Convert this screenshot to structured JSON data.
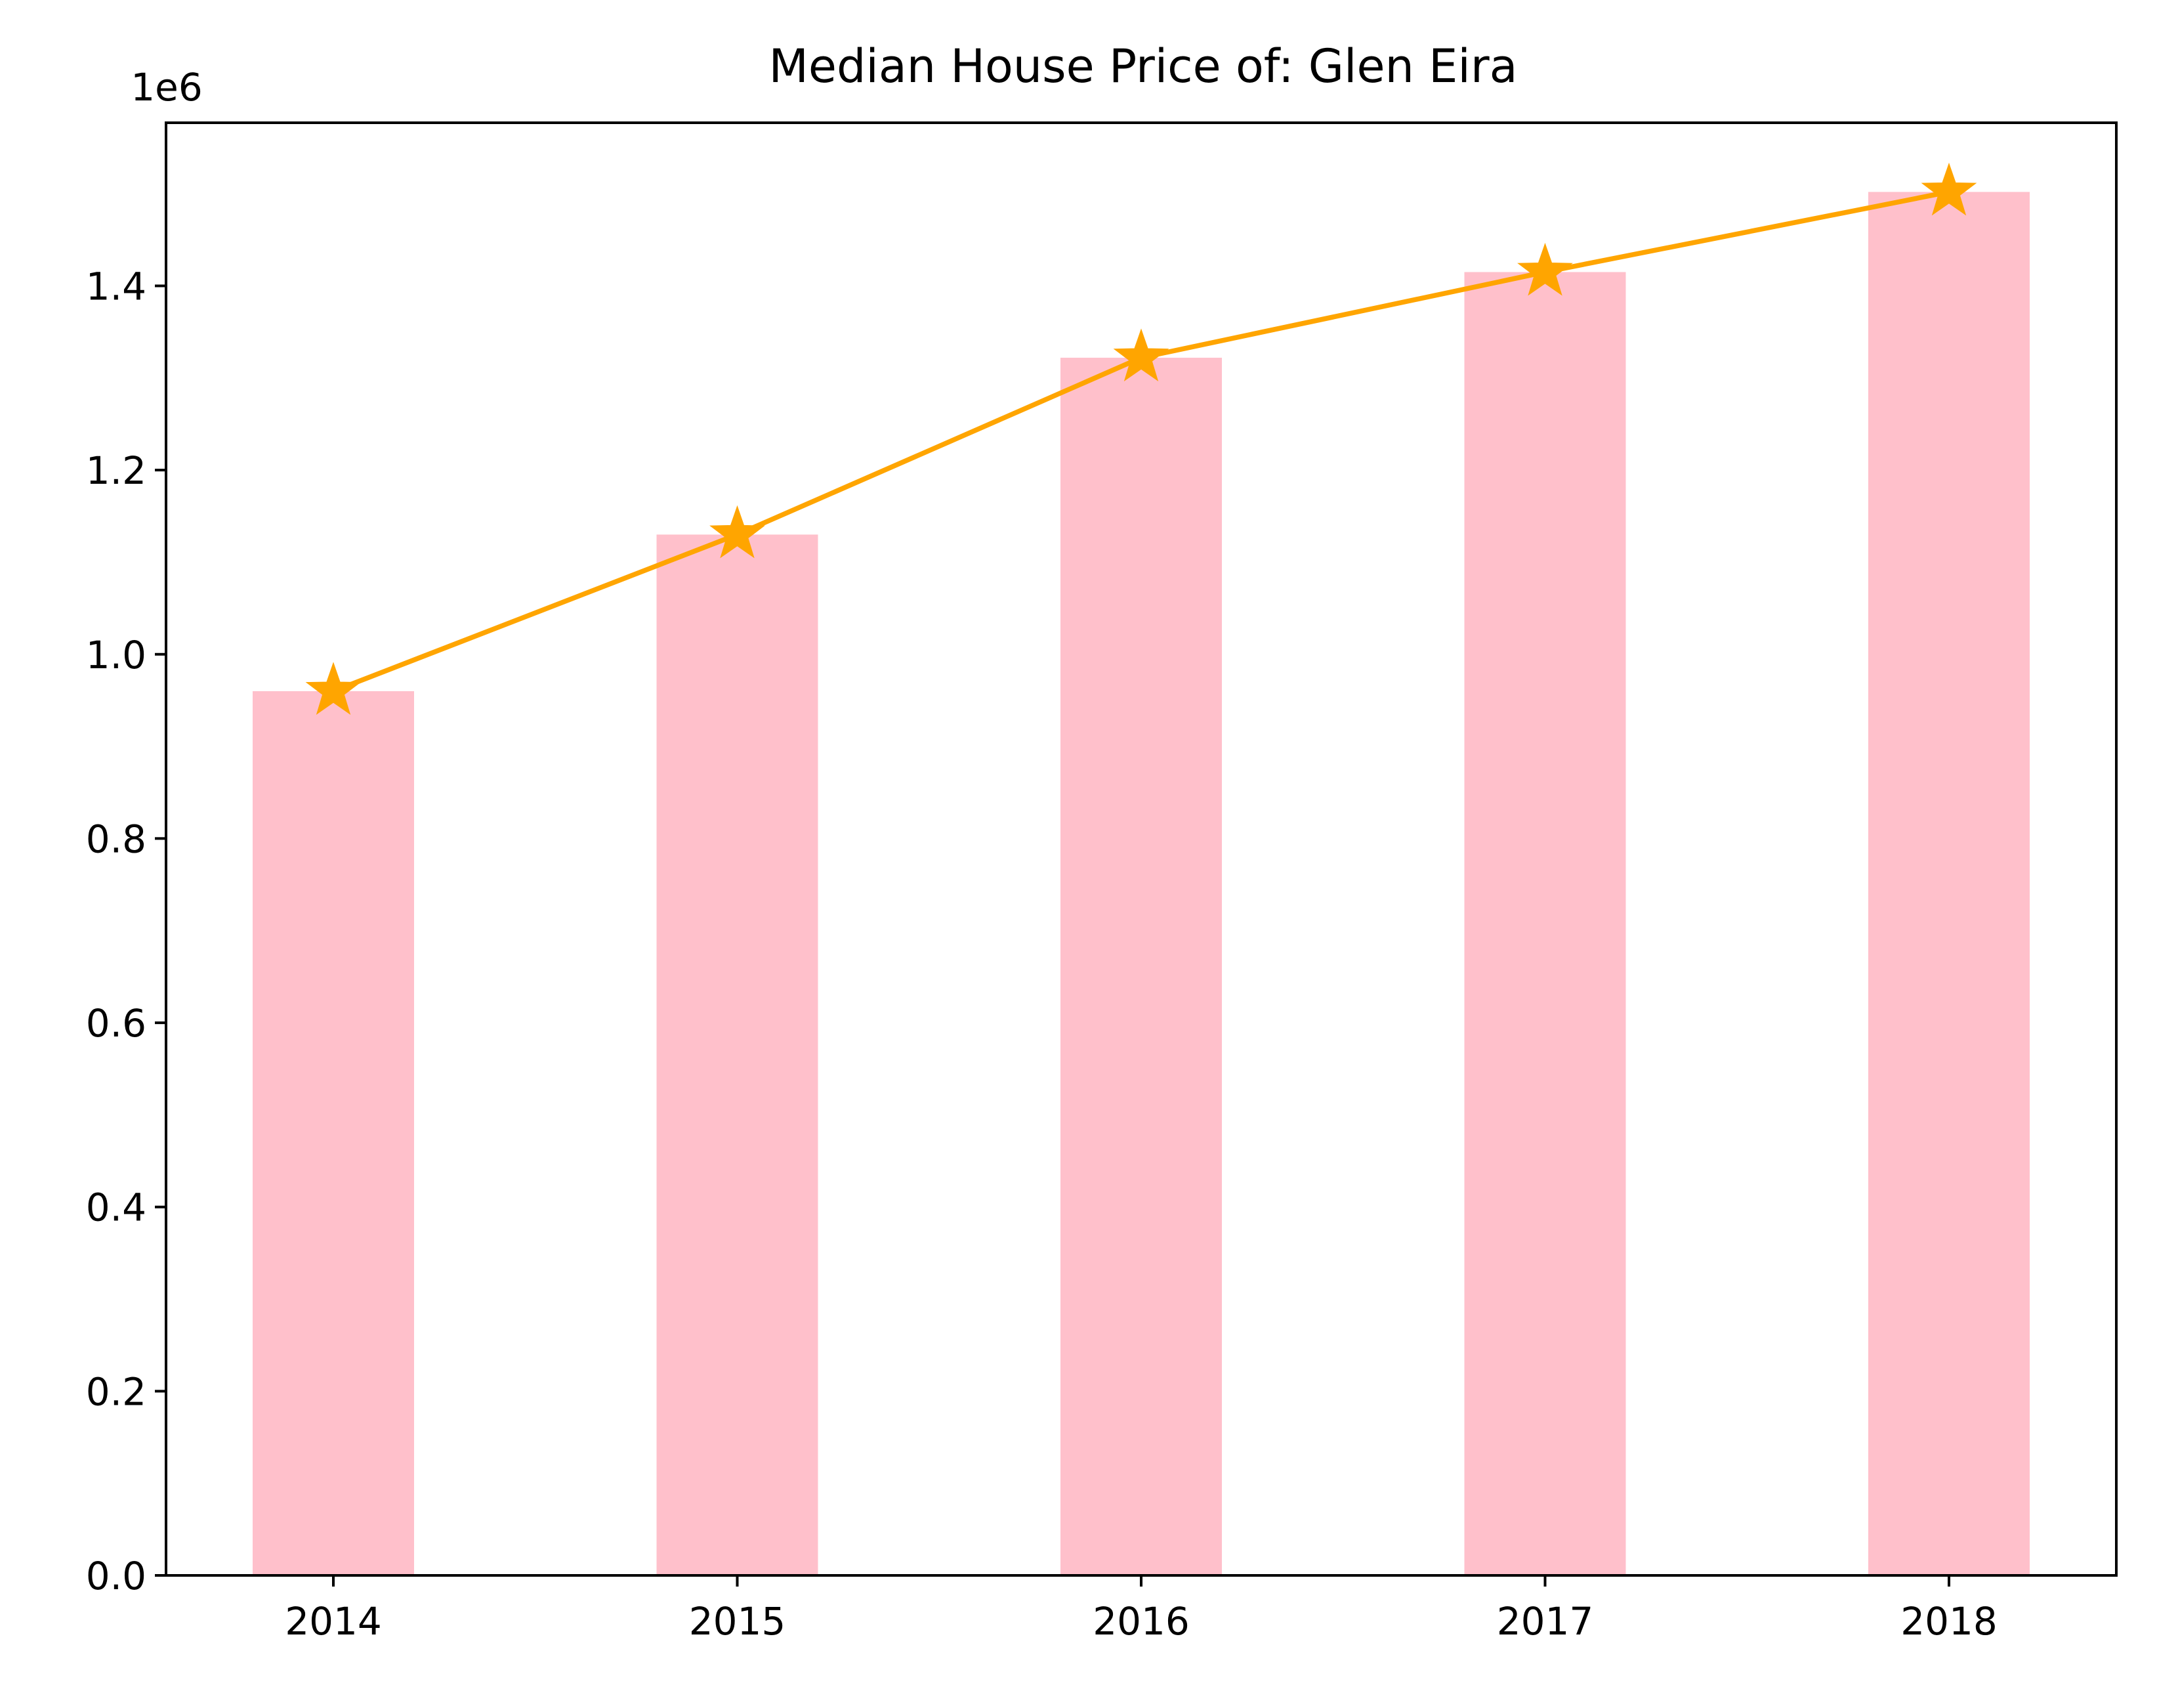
{
  "chart_data": {
    "type": "bar",
    "title": "Median House Price of: Glen Eira",
    "categories": [
      "2014",
      "2015",
      "2016",
      "2017",
      "2018"
    ],
    "series": [
      {
        "kind": "bar",
        "values": [
          960000,
          1130000,
          1322000,
          1415000,
          1502000
        ]
      },
      {
        "kind": "line",
        "marker": "star",
        "values": [
          960000,
          1130000,
          1322000,
          1415000,
          1502000
        ]
      }
    ],
    "xlabel": "",
    "ylabel": "",
    "ylim": [
      0,
      1577100
    ],
    "y_ticks": [
      0.0,
      0.2,
      0.4,
      0.6,
      0.8,
      1.0,
      1.2,
      1.4
    ],
    "y_tick_labels": [
      "0.0",
      "0.2",
      "0.4",
      "0.6",
      "0.8",
      "1.0",
      "1.2",
      "1.4"
    ],
    "y_offset_label": "1e6",
    "grid": false,
    "legend": false,
    "colors": {
      "bar": "#ffc0cb",
      "line": "#ffa500"
    }
  }
}
